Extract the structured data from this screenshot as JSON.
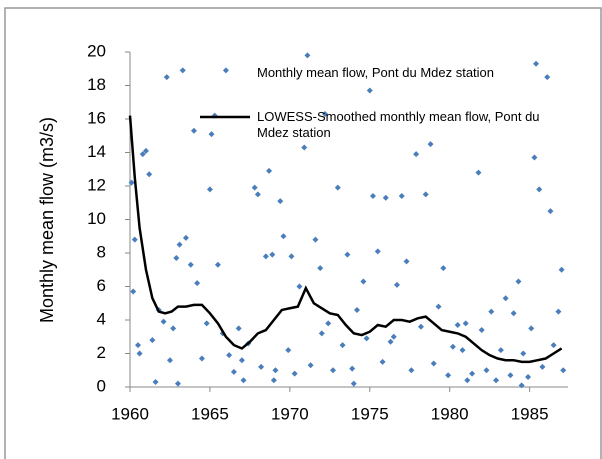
{
  "chart_data": {
    "type": "scatter",
    "y_label": "Monthly mean flow (m3/s)",
    "xlim": [
      1960,
      1987.4
    ],
    "ylim": [
      0,
      20
    ],
    "xticks": [
      1960,
      1965,
      1970,
      1975,
      1980,
      1985
    ],
    "yticks": [
      0,
      2,
      4,
      6,
      8,
      10,
      12,
      14,
      16,
      18,
      20
    ],
    "series": [
      {
        "name": "Monthly mean flow, Pont du Mdez station",
        "type": "scatter",
        "color": "#4a7ebb",
        "x": [
          1960.1,
          1960.2,
          1960.3,
          1960.5,
          1960.6,
          1960.8,
          1961.0,
          1961.2,
          1961.4,
          1961.6,
          1961.8,
          1962.1,
          1962.3,
          1962.5,
          1962.7,
          1962.9,
          1963.1,
          1963.3,
          1963.5,
          1963.8,
          1964.0,
          1964.2,
          1964.5,
          1964.8,
          1965.0,
          1965.1,
          1965.3,
          1965.5,
          1965.8,
          1966.0,
          1966.2,
          1966.5,
          1966.8,
          1967.1,
          1967.4,
          1967.8,
          1968.0,
          1968.2,
          1968.5,
          1968.7,
          1968.9,
          1969.1,
          1969.4,
          1969.6,
          1969.9,
          1970.1,
          1970.3,
          1970.6,
          1970.9,
          1971.1,
          1971.3,
          1971.6,
          1971.9,
          1972.2,
          1972.4,
          1972.7,
          1973.0,
          1973.3,
          1973.6,
          1973.9,
          1974.2,
          1974.6,
          1974.8,
          1975.0,
          1975.2,
          1975.5,
          1975.8,
          1976.0,
          1976.3,
          1976.7,
          1977.0,
          1977.3,
          1977.6,
          1977.9,
          1978.2,
          1978.5,
          1978.8,
          1979.0,
          1979.3,
          1979.6,
          1979.9,
          1980.2,
          1980.5,
          1980.8,
          1981.1,
          1981.4,
          1981.8,
          1982.0,
          1982.3,
          1982.6,
          1982.9,
          1983.2,
          1983.5,
          1983.8,
          1984.0,
          1984.3,
          1984.6,
          1984.9,
          1985.1,
          1985.3,
          1985.4,
          1985.6,
          1985.8,
          1986.1,
          1986.3,
          1986.5,
          1986.8,
          1987.0,
          1987.1,
          1963.0,
          1967.0,
          1972.0,
          1976.5,
          1981.0,
          1969.0,
          1974.0,
          1984.5
        ],
        "values": [
          12.2,
          5.7,
          8.8,
          2.5,
          2.0,
          13.9,
          14.1,
          12.7,
          2.8,
          0.3,
          4.6,
          3.9,
          18.5,
          1.6,
          3.5,
          7.7,
          8.5,
          18.9,
          8.9,
          7.3,
          15.3,
          6.2,
          1.7,
          3.8,
          11.8,
          15.1,
          16.2,
          7.3,
          3.2,
          18.9,
          1.9,
          0.9,
          3.5,
          0.4,
          2.6,
          11.9,
          11.5,
          1.2,
          7.8,
          12.9,
          7.9,
          1.0,
          11.1,
          9.0,
          2.2,
          7.8,
          0.8,
          6.0,
          14.3,
          19.8,
          1.3,
          8.8,
          7.1,
          16.3,
          3.8,
          1.0,
          11.9,
          2.5,
          7.9,
          1.1,
          4.6,
          6.3,
          2.9,
          17.7,
          11.4,
          8.1,
          1.5,
          11.3,
          2.7,
          6.1,
          11.4,
          7.5,
          1.0,
          13.9,
          3.6,
          11.5,
          14.5,
          1.4,
          4.8,
          7.1,
          0.7,
          2.4,
          3.7,
          2.2,
          0.4,
          0.8,
          12.8,
          3.4,
          1.0,
          4.5,
          0.4,
          2.2,
          5.3,
          0.7,
          4.4,
          6.3,
          2.0,
          0.6,
          3.5,
          13.7,
          19.3,
          11.8,
          1.2,
          18.5,
          10.5,
          2.5,
          4.5,
          7.0,
          1.0,
          0.2,
          1.6,
          3.2,
          3.0,
          3.8,
          0.4,
          0.2,
          0.1
        ]
      },
      {
        "name": "LOWESS-Smoothed monthly mean flow, Pont du Mdez station",
        "type": "line",
        "color": "#000000",
        "x": [
          1960,
          1960.3,
          1960.6,
          1961,
          1961.4,
          1961.8,
          1962.2,
          1962.6,
          1963,
          1963.5,
          1964,
          1964.5,
          1965,
          1965.5,
          1966,
          1966.5,
          1967,
          1967.5,
          1968,
          1968.5,
          1969,
          1969.5,
          1970,
          1970.5,
          1971,
          1971.5,
          1972,
          1972.5,
          1973,
          1973.5,
          1974,
          1974.5,
          1975,
          1975.5,
          1976,
          1976.5,
          1977,
          1977.5,
          1978,
          1978.5,
          1979,
          1979.5,
          1980,
          1980.5,
          1981,
          1981.5,
          1982,
          1982.5,
          1983,
          1983.5,
          1984,
          1984.5,
          1985,
          1985.5,
          1986,
          1986.5,
          1987
        ],
        "values": [
          16.2,
          12.5,
          9.5,
          7.0,
          5.3,
          4.5,
          4.4,
          4.5,
          4.8,
          4.8,
          4.9,
          4.9,
          4.4,
          3.8,
          3.0,
          2.5,
          2.3,
          2.7,
          3.2,
          3.4,
          4.0,
          4.6,
          4.7,
          4.8,
          5.9,
          5.0,
          4.7,
          4.4,
          4.3,
          3.7,
          3.2,
          3.1,
          3.3,
          3.7,
          3.6,
          4.0,
          4.0,
          3.9,
          4.1,
          4.2,
          3.8,
          3.4,
          3.3,
          3.2,
          3.0,
          2.6,
          2.2,
          1.9,
          1.7,
          1.6,
          1.6,
          1.5,
          1.5,
          1.6,
          1.7,
          2.0,
          2.3
        ]
      }
    ]
  }
}
